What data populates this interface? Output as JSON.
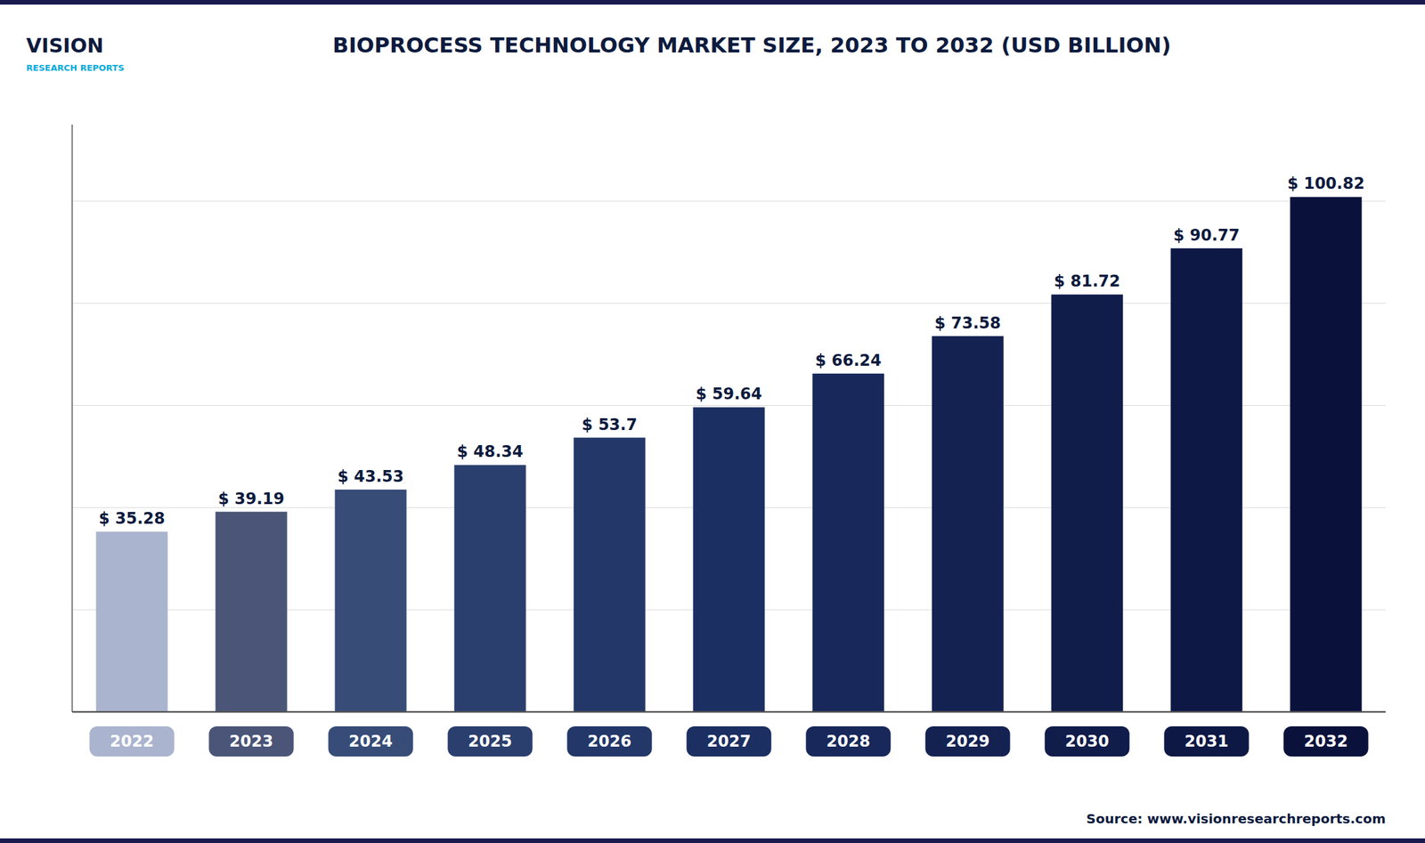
{
  "chart_data": {
    "type": "bar",
    "title": "BIOPROCESS TECHNOLOGY MARKET SIZE, 2023 TO 2032 (USD BILLION)",
    "categories": [
      "2022",
      "2023",
      "2024",
      "2025",
      "2026",
      "2027",
      "2028",
      "2029",
      "2030",
      "2031",
      "2032"
    ],
    "values": [
      35.28,
      39.19,
      43.53,
      48.34,
      53.7,
      59.64,
      66.24,
      73.58,
      81.72,
      90.77,
      100.82
    ],
    "value_labels": [
      "$ 35.28",
      "$ 39.19",
      "$ 43.53",
      "$ 48.34",
      "$ 53.7",
      "$ 59.64",
      "$ 66.24",
      "$ 73.58",
      "$ 81.72",
      "$ 90.77",
      "$ 100.82"
    ],
    "colors": [
      "#aab4ce",
      "#4a5578",
      "#374d78",
      "#2b3f6e",
      "#233769",
      "#1c2f62",
      "#18285a",
      "#142252",
      "#101c4a",
      "#0d1844",
      "#0a123c"
    ],
    "ylim": [
      0,
      115
    ],
    "yticks": [
      0,
      20,
      40,
      60,
      80,
      100
    ],
    "grid": true,
    "data_labels": true,
    "tick_labels": "x",
    "annotations": [
      "VISION",
      "RESEARCH REPORTS",
      "Source: www.visionresearchreports.com"
    ]
  }
}
